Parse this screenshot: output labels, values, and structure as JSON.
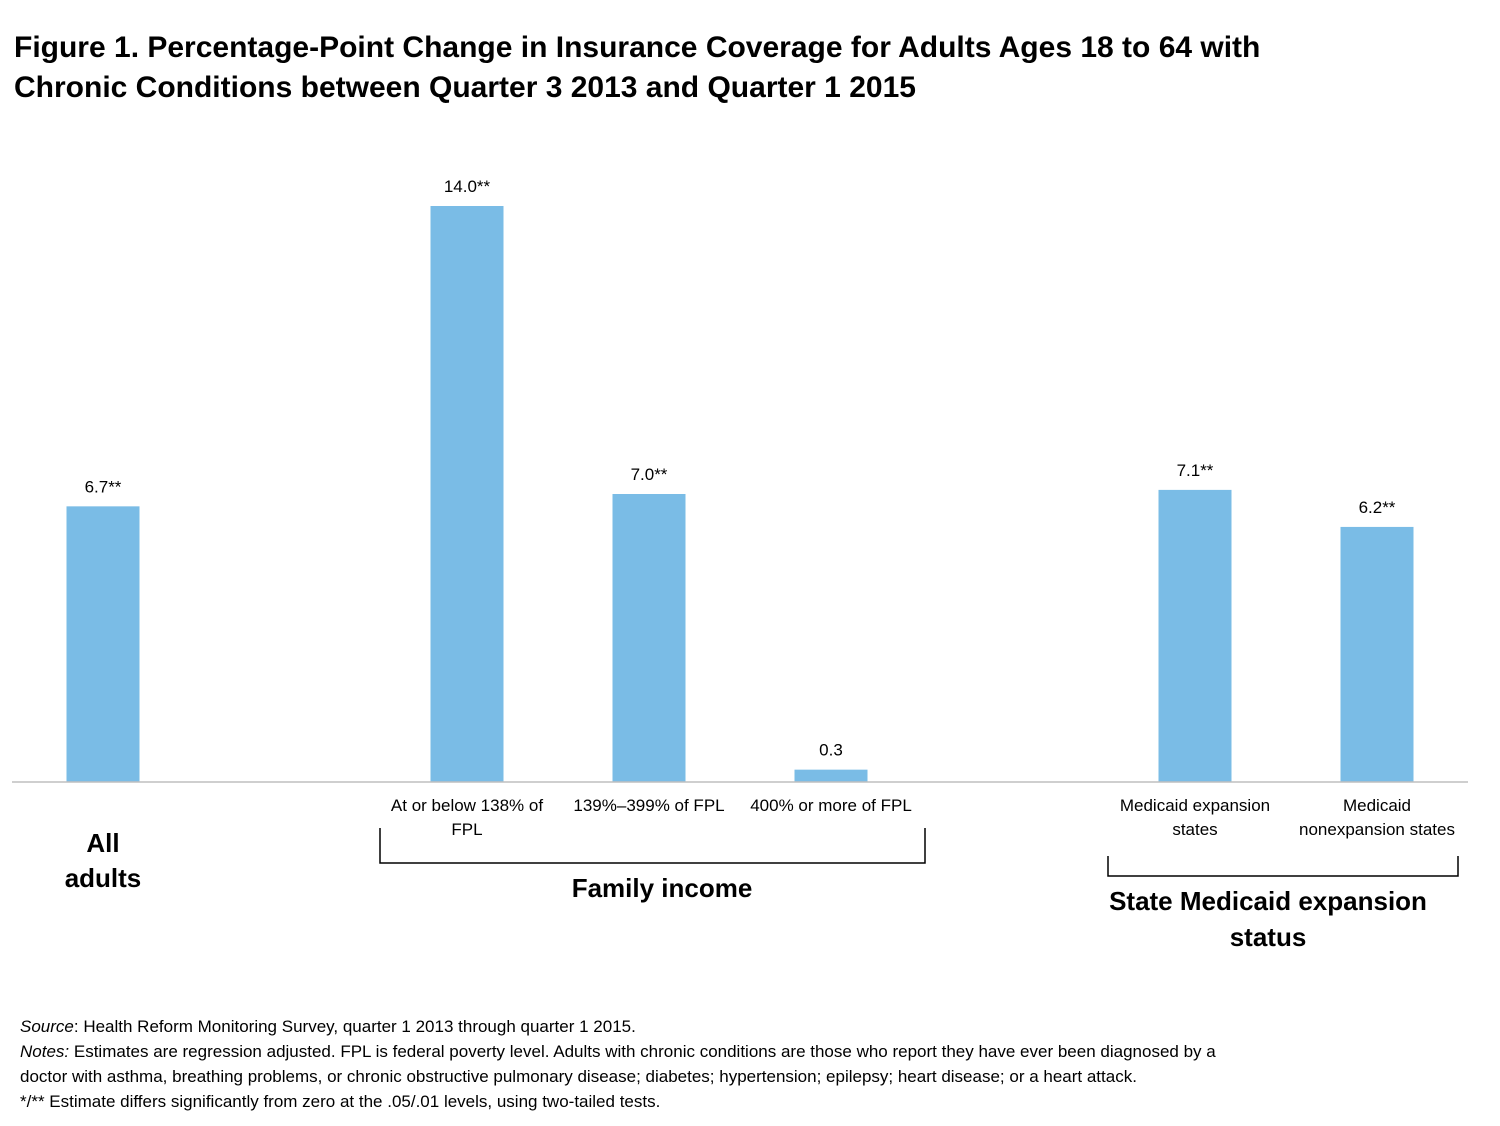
{
  "title_lines": [
    "Figure 1. Percentage-Point Change in Insurance Coverage for Adults Ages 18 to 64 with",
    "Chronic Conditions between Quarter 3 2013 and Quarter 1 2015"
  ],
  "chart_data": {
    "type": "bar",
    "title": "Figure 1. Percentage-Point Change in Insurance Coverage for Adults Ages 18 to 64 with Chronic Conditions between Quarter 3 2013 and Quarter 1 2015",
    "categories": [
      [
        "All",
        "adults"
      ],
      [
        "At or below 138% of",
        "FPL"
      ],
      [
        "139%–399% of FPL"
      ],
      [
        "400% or more of FPL"
      ],
      [
        "Medicaid expansion",
        "states"
      ],
      [
        "Medicaid",
        "nonexpansion states"
      ]
    ],
    "values": [
      6.7,
      14.0,
      7.0,
      0.3,
      7.1,
      6.2
    ],
    "data_labels": [
      "6.7**",
      "14.0**",
      "7.0**",
      "0.3",
      "7.1**",
      "6.2**"
    ],
    "groups": [
      {
        "label": [
          "Family income"
        ],
        "members": [
          1,
          2,
          3
        ]
      },
      {
        "label": [
          "State Medicaid expansion",
          "status"
        ],
        "members": [
          4,
          5
        ]
      }
    ],
    "ylim": [
      0,
      14.0
    ],
    "grid": false,
    "legend": "none",
    "bar_color": "#7ABCE6",
    "axis_color": "#BFBFBF"
  },
  "footer": {
    "source_label": "Source",
    "source_text": ": Health Reform Monitoring Survey, quarter 1 2013 through quarter 1 2015.",
    "notes_label": "Notes:",
    "notes_text_1": " Estimates are regression adjusted. FPL is federal poverty level. Adults with chronic conditions are those who report they have ever been diagnosed by a",
    "notes_text_2": "doctor with asthma, breathing problems, or chronic obstructive pulmonary disease; diabetes; hypertension; epilepsy; heart disease; or a heart attack.",
    "significance": "*/** Estimate differs significantly from zero at the .05/.01 levels, using two-tailed tests."
  }
}
